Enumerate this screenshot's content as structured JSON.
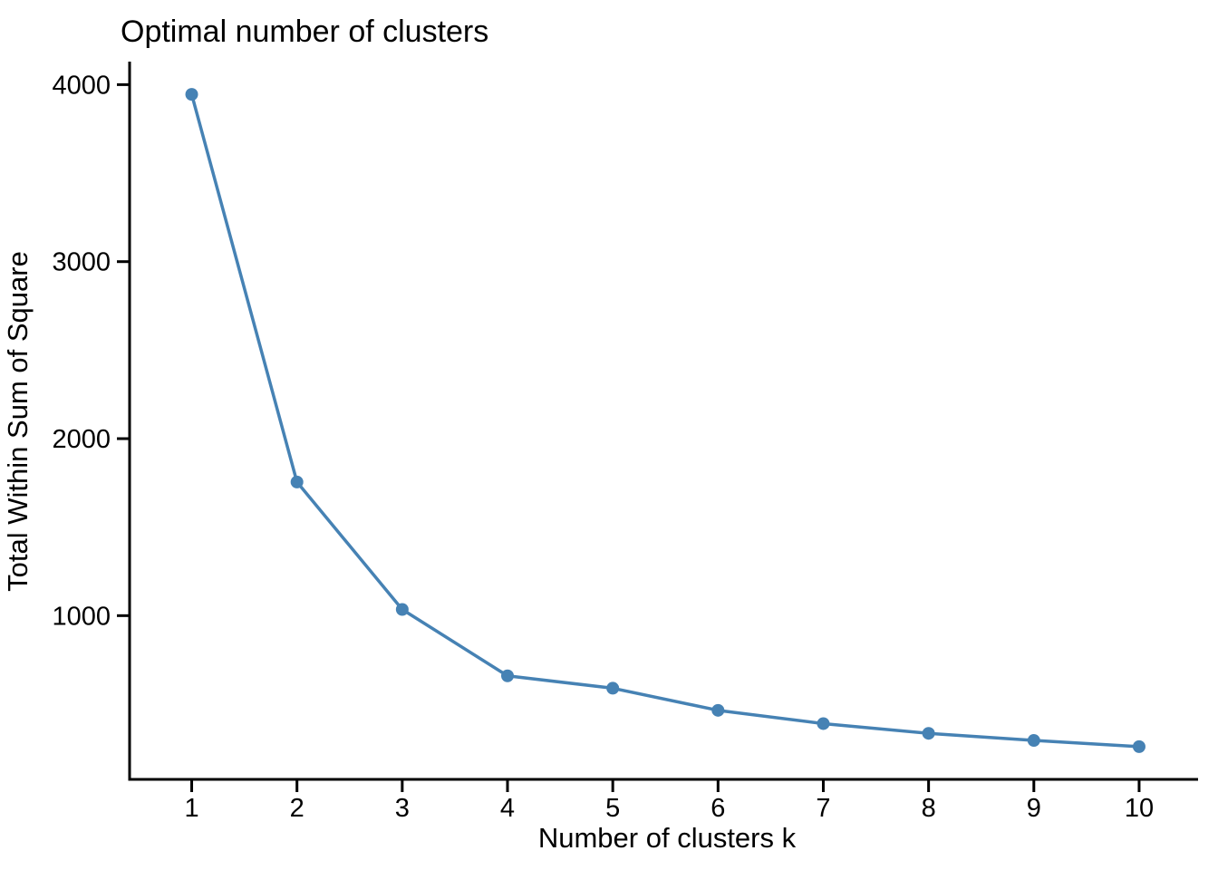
{
  "chart_data": {
    "type": "line",
    "title": "Optimal number of clusters",
    "xlabel": "Number of clusters k",
    "ylabel": "Total Within Sum of Square",
    "x": [
      1,
      2,
      3,
      4,
      5,
      6,
      7,
      8,
      9,
      10
    ],
    "series": [
      {
        "name": "Total Within Sum of Square",
        "values": [
          3945,
          1755,
          1035,
          660,
          590,
          465,
          390,
          335,
          295,
          260
        ]
      }
    ],
    "xticks": [
      1,
      2,
      3,
      4,
      5,
      6,
      7,
      8,
      9,
      10
    ],
    "yticks": [
      1000,
      2000,
      3000,
      4000
    ],
    "xlim": [
      0.41,
      10.56
    ],
    "ylim": [
      75,
      4130
    ],
    "grid": false,
    "legend_position": "none",
    "marker": "circle",
    "series_color": "#4682B4",
    "axis_color": "#000000",
    "background_color": "#FFFFFF"
  }
}
